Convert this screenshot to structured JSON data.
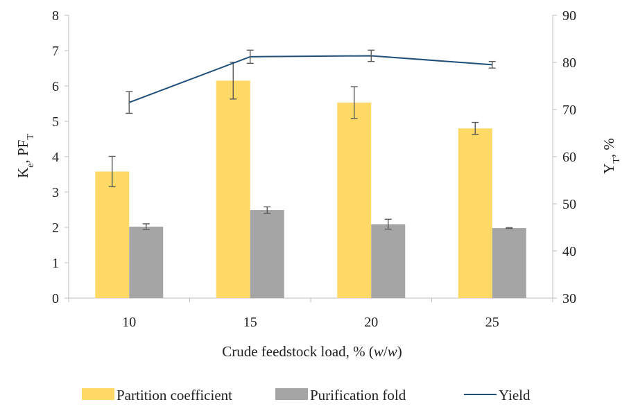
{
  "chart_data": {
    "type": "bar",
    "categories": [
      "10",
      "15",
      "20",
      "25"
    ],
    "xlabel": {
      "prefix": "Crude feedstock load, % (",
      "w1": "w",
      "slash": "/",
      "w2": "w",
      "suffix": ")"
    },
    "ylabel_left": {
      "main": "K",
      "sub": "e",
      "mid": ", PF",
      "sub2": "T"
    },
    "ylabel_right": {
      "main": "Y",
      "sub": "T",
      "suffix": ", %"
    },
    "ylim_left": [
      0,
      8
    ],
    "yticks_left": [
      0,
      1,
      2,
      3,
      4,
      5,
      6,
      7,
      8
    ],
    "ylim_right": [
      30,
      90
    ],
    "yticks_right": [
      30,
      40,
      50,
      60,
      70,
      80,
      90
    ],
    "grid": false,
    "legend_position": "bottom",
    "series": [
      {
        "name": "Partition coefficient",
        "kind": "bar",
        "axis": "left",
        "color": "#FFD966",
        "values": [
          3.58,
          6.15,
          5.53,
          4.8
        ],
        "errors": [
          0.43,
          0.52,
          0.45,
          0.17
        ]
      },
      {
        "name": "Purification fold",
        "kind": "bar",
        "axis": "left",
        "color": "#A5A5A5",
        "values": [
          2.02,
          2.49,
          2.09,
          1.98
        ],
        "errors": [
          0.08,
          0.09,
          0.14,
          0.01
        ]
      },
      {
        "name": "Yield",
        "kind": "line",
        "axis": "right",
        "color": "#1F4E79",
        "values": [
          71.5,
          81.2,
          81.4,
          79.5
        ],
        "errors": [
          2.3,
          1.4,
          1.2,
          0.7
        ]
      }
    ]
  }
}
